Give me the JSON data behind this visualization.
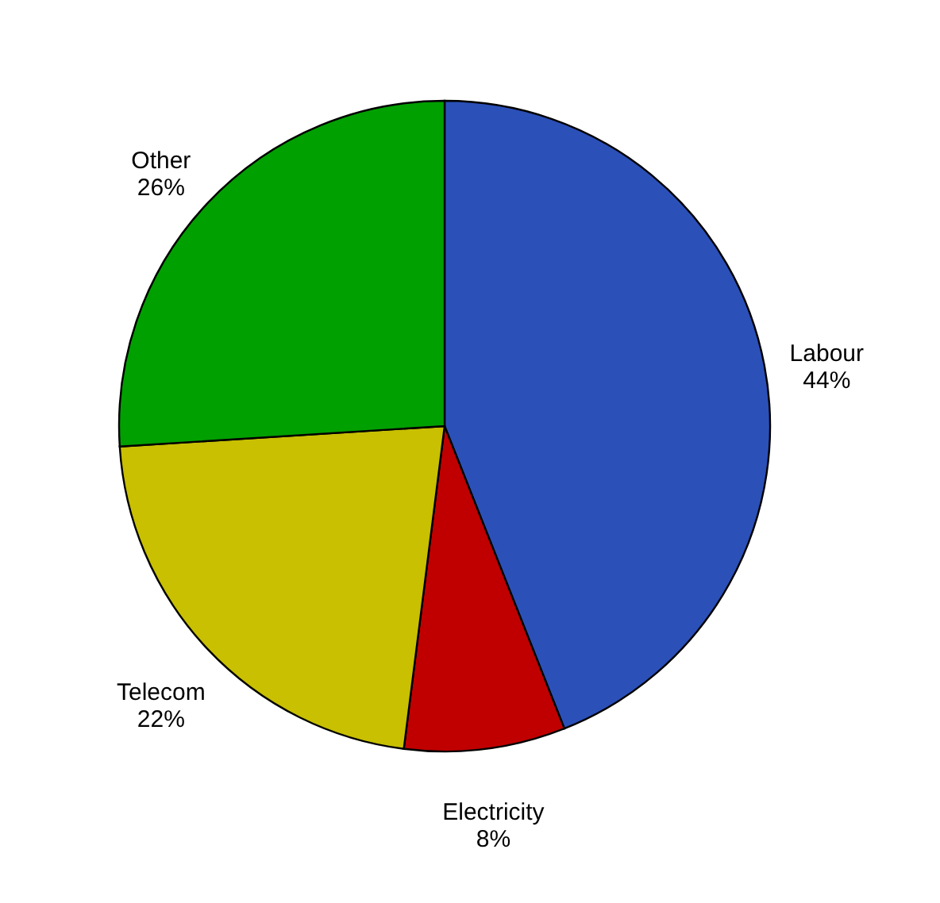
{
  "chart_data": {
    "type": "pie",
    "categories": [
      "Labour",
      "Electricity",
      "Telecom",
      "Other"
    ],
    "values": [
      44,
      8,
      22,
      26
    ],
    "value_labels": [
      "44%",
      "8%",
      "22%",
      "26%"
    ],
    "colors": [
      "#2b50b8",
      "#c00000",
      "#c8c000",
      "#00a000"
    ],
    "legend": false
  }
}
